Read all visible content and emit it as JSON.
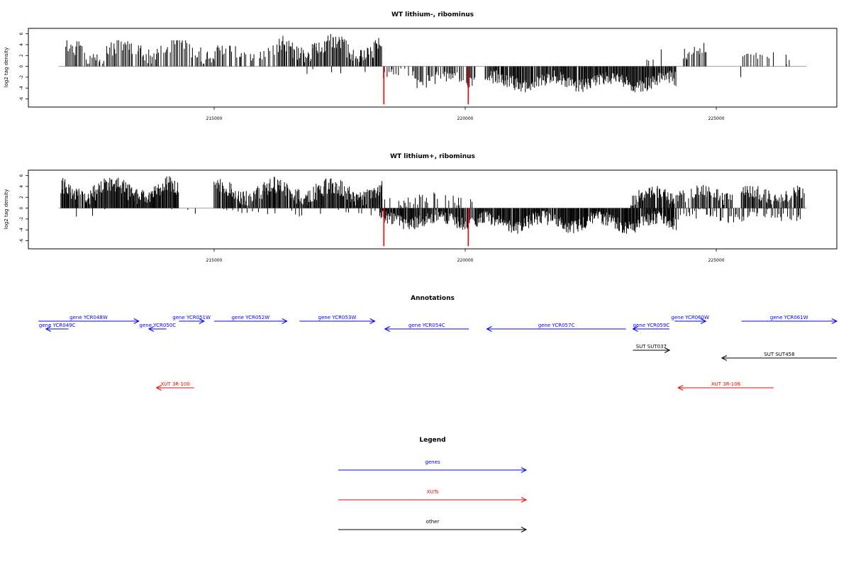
{
  "chart_data": [
    {
      "type": "bar",
      "title": "WT lithium-, ribominus",
      "ylabel": "log2 tag density",
      "xlim": [
        211300,
        227400
      ],
      "ylim": [
        -7.5,
        7
      ],
      "x_ticks": [
        215000,
        220000,
        225000
      ],
      "x_tick_labels": [
        "215000",
        "220000",
        "225000"
      ],
      "y_ticks": [
        6,
        4,
        2,
        0,
        -2,
        -4,
        -6
      ],
      "y_tick_labels": [
        "6",
        "4",
        "2",
        "0",
        "-2",
        "-4",
        "-6"
      ],
      "baseline": {
        "x_start": 211900,
        "x_end": 226800,
        "y": 0
      },
      "series": [
        {
          "color": "#000000",
          "segments": [
            {
              "strand": "plus",
              "x_start": 212050,
              "x_end": 215050,
              "x_step": 25,
              "mean": 2.8,
              "amp": 1.3,
              "noise": 1.6,
              "min": 0.5,
              "max": 4.8,
              "seed": 11,
              "density": 0.85
            },
            {
              "strand": "plus",
              "x_start": 215000,
              "x_end": 216300,
              "x_step": 25,
              "mean": 2.4,
              "amp": 0.8,
              "noise": 1.2,
              "min": 0.4,
              "max": 4.0,
              "seed": 12,
              "density": 0.6
            },
            {
              "strand": "plus",
              "x_start": 216300,
              "x_end": 218350,
              "x_step": 18,
              "mean": 3.3,
              "amp": 1.2,
              "noise": 1.6,
              "min": 0.6,
              "max": 6.2,
              "seed": 13,
              "density": 0.95
            },
            {
              "strand": "plus",
              "x_start": 223500,
              "x_end": 224100,
              "x_step": 40,
              "mean": 1.8,
              "amp": 0.5,
              "noise": 1.2,
              "min": 0.3,
              "max": 3.4,
              "seed": 14,
              "density": 0.35
            },
            {
              "strand": "plus",
              "x_start": 224350,
              "x_end": 224800,
              "x_step": 22,
              "mean": 3.0,
              "amp": 0.6,
              "noise": 1.2,
              "min": 0.6,
              "max": 4.8,
              "seed": 15,
              "density": 0.8
            },
            {
              "strand": "plus",
              "x_start": 225500,
              "x_end": 226700,
              "x_step": 35,
              "mean": 1.8,
              "amp": 0.6,
              "noise": 1.0,
              "min": 0.4,
              "max": 3.6,
              "seed": 16,
              "density": 0.45
            },
            {
              "strand": "minus",
              "x_start": 216700,
              "x_end": 218300,
              "x_step": 70,
              "mean": -1.0,
              "amp": 0.4,
              "noise": 0.8,
              "min": -3.2,
              "max": -0.2,
              "seed": 17,
              "density": 0.25
            },
            {
              "strand": "minus",
              "x_start": 218350,
              "x_end": 219000,
              "x_step": 25,
              "mean": -1.3,
              "amp": 0.4,
              "noise": 0.9,
              "min": -3.0,
              "max": -0.2,
              "seed": 18,
              "density": 0.5
            },
            {
              "strand": "minus",
              "x_start": 219000,
              "x_end": 220200,
              "x_step": 20,
              "mean": -2.4,
              "amp": 0.8,
              "noise": 1.3,
              "min": -5.5,
              "max": -0.3,
              "seed": 19,
              "density": 0.75
            },
            {
              "strand": "minus",
              "x_start": 220400,
              "x_end": 224200,
              "x_step": 14,
              "mean": -2.8,
              "amp": 0.8,
              "noise": 1.3,
              "min": -5.8,
              "max": -0.5,
              "seed": 20,
              "density": 0.95
            },
            {
              "strand": "minus",
              "x_start": 225500,
              "x_end": 226400,
              "x_step": 60,
              "mean": -1.2,
              "amp": 0.3,
              "noise": 0.8,
              "min": -2.6,
              "max": -0.2,
              "seed": 21,
              "density": 0.25
            }
          ]
        },
        {
          "color": "#ff0000",
          "points": [
            {
              "x": 218380,
              "y": -7.0
            },
            {
              "x": 220060,
              "y": -7.0
            }
          ]
        }
      ]
    },
    {
      "type": "bar",
      "title": "WT lithium+, ribominus",
      "ylabel": "log2 tag density",
      "xlim": [
        211300,
        227400
      ],
      "ylim": [
        -7.5,
        7
      ],
      "x_ticks": [
        215000,
        220000,
        225000
      ],
      "x_tick_labels": [
        "215000",
        "220000",
        "225000"
      ],
      "y_ticks": [
        6,
        4,
        2,
        0,
        -2,
        -4,
        -6
      ],
      "y_tick_labels": [
        "6",
        "4",
        "2",
        "0",
        "-2",
        "-4",
        "-6"
      ],
      "baseline": {
        "x_start": 211900,
        "x_end": 226800,
        "y": 0
      },
      "series": [
        {
          "color": "#000000",
          "segments": [
            {
              "strand": "plus",
              "x_start": 211950,
              "x_end": 214300,
              "x_step": 13,
              "mean": 3.2,
              "amp": 1.2,
              "noise": 1.6,
              "min": 0.5,
              "max": 6.4,
              "seed": 31,
              "density": 0.97
            },
            {
              "strand": "plus",
              "x_start": 215000,
              "x_end": 218350,
              "x_step": 14,
              "mean": 3.0,
              "amp": 1.2,
              "noise": 1.6,
              "min": 0.5,
              "max": 6.5,
              "seed": 32,
              "density": 0.93
            },
            {
              "strand": "plus",
              "x_start": 218350,
              "x_end": 220200,
              "x_step": 35,
              "mean": 1.6,
              "amp": 0.5,
              "noise": 1.0,
              "min": 0.3,
              "max": 3.2,
              "seed": 33,
              "density": 0.4
            },
            {
              "strand": "plus",
              "x_start": 223300,
              "x_end": 224200,
              "x_step": 14,
              "mean": 2.2,
              "amp": 0.9,
              "noise": 1.2,
              "min": 0.4,
              "max": 5.6,
              "seed": 34,
              "density": 0.85
            },
            {
              "strand": "plus",
              "x_start": 224200,
              "x_end": 225350,
              "x_step": 18,
              "mean": 2.4,
              "amp": 0.8,
              "noise": 1.3,
              "min": 0.4,
              "max": 5.0,
              "seed": 35,
              "density": 0.85
            },
            {
              "strand": "plus",
              "x_start": 225500,
              "x_end": 226750,
              "x_step": 16,
              "mean": 2.4,
              "amp": 0.8,
              "noise": 1.3,
              "min": 0.4,
              "max": 5.8,
              "seed": 36,
              "density": 0.88
            },
            {
              "strand": "minus",
              "x_start": 212200,
              "x_end": 214900,
              "x_step": 90,
              "mean": -1.0,
              "amp": 0.4,
              "noise": 0.8,
              "min": -3.6,
              "max": -0.2,
              "seed": 37,
              "density": 0.3
            },
            {
              "strand": "minus",
              "x_start": 215000,
              "x_end": 218300,
              "x_step": 60,
              "mean": -0.8,
              "amp": 0.3,
              "noise": 0.6,
              "min": -2.6,
              "max": -0.2,
              "seed": 38,
              "density": 0.4
            },
            {
              "strand": "minus",
              "x_start": 218300,
              "x_end": 220300,
              "x_step": 13,
              "mean": -2.2,
              "amp": 0.7,
              "noise": 1.2,
              "min": -5.5,
              "max": -0.3,
              "seed": 39,
              "density": 0.9
            },
            {
              "strand": "minus",
              "x_start": 220300,
              "x_end": 224200,
              "x_step": 12,
              "mean": -2.6,
              "amp": 0.9,
              "noise": 1.3,
              "min": -6.8,
              "max": -0.4,
              "seed": 40,
              "density": 0.97
            },
            {
              "strand": "minus",
              "x_start": 224200,
              "x_end": 226700,
              "x_step": 25,
              "mean": -1.4,
              "amp": 0.5,
              "noise": 0.9,
              "min": -3.2,
              "max": -0.2,
              "seed": 41,
              "density": 0.6
            }
          ]
        },
        {
          "color": "#ff0000",
          "points": [
            {
              "x": 218380,
              "y": -7.0
            },
            {
              "x": 220060,
              "y": -7.0
            }
          ]
        }
      ]
    }
  ],
  "annotations": {
    "title": "Annotations",
    "xlim": [
      211300,
      227400
    ],
    "items": [
      {
        "label": "gene YCR048W",
        "start": 211500,
        "end": 213500,
        "strand": "+",
        "row": 0,
        "color": "#0000ff"
      },
      {
        "label": "gene YCR049C",
        "start": 211650,
        "end": 212100,
        "strand": "-",
        "row": 1,
        "color": "#0000ff"
      },
      {
        "label": "gene YCR050C",
        "start": 213700,
        "end": 214050,
        "strand": "-",
        "row": 1,
        "color": "#0000ff"
      },
      {
        "label": "gene YCR051W",
        "start": 214300,
        "end": 214800,
        "strand": "+",
        "row": 0,
        "color": "#0000ff"
      },
      {
        "label": "gene YCR052W",
        "start": 215000,
        "end": 216450,
        "strand": "+",
        "row": 0,
        "color": "#0000ff"
      },
      {
        "label": "gene YCR053W",
        "start": 216700,
        "end": 218200,
        "strand": "+",
        "row": 0,
        "color": "#0000ff"
      },
      {
        "label": "gene YCR054C",
        "start": 218400,
        "end": 220070,
        "strand": "-",
        "row": 1,
        "color": "#0000ff"
      },
      {
        "label": "gene YCR057C",
        "start": 220430,
        "end": 223200,
        "strand": "-",
        "row": 1,
        "color": "#0000ff"
      },
      {
        "label": "gene YCR059C",
        "start": 223340,
        "end": 224070,
        "strand": "-",
        "row": 1,
        "color": "#0000ff"
      },
      {
        "label": "gene YCR060W",
        "start": 224170,
        "end": 224790,
        "strand": "+",
        "row": 0,
        "color": "#0000ff"
      },
      {
        "label": "gene YCR061W",
        "start": 225500,
        "end": 227400,
        "strand": "+",
        "row": 0,
        "color": "#0000ff"
      },
      {
        "label": "SUT SUT037",
        "start": 223340,
        "end": 224070,
        "strand": "+",
        "row": 2,
        "color": "#000000"
      },
      {
        "label": "SUT SUT458",
        "start": 225110,
        "end": 227400,
        "strand": "-",
        "row": 3,
        "color": "#000000"
      },
      {
        "label": "XUT 3R-100",
        "start": 213850,
        "end": 214600,
        "strand": "-",
        "row": 4,
        "color": "#ff0000"
      },
      {
        "label": "XUT 3R-106",
        "start": 224240,
        "end": 226140,
        "strand": "-",
        "row": 4,
        "color": "#ff0000"
      }
    ]
  },
  "legend": {
    "title": "Legend",
    "items": [
      {
        "label": "genes",
        "color": "#0000ff"
      },
      {
        "label": "XUTs",
        "color": "#ff0000"
      },
      {
        "label": "other",
        "color": "#000000"
      }
    ]
  }
}
